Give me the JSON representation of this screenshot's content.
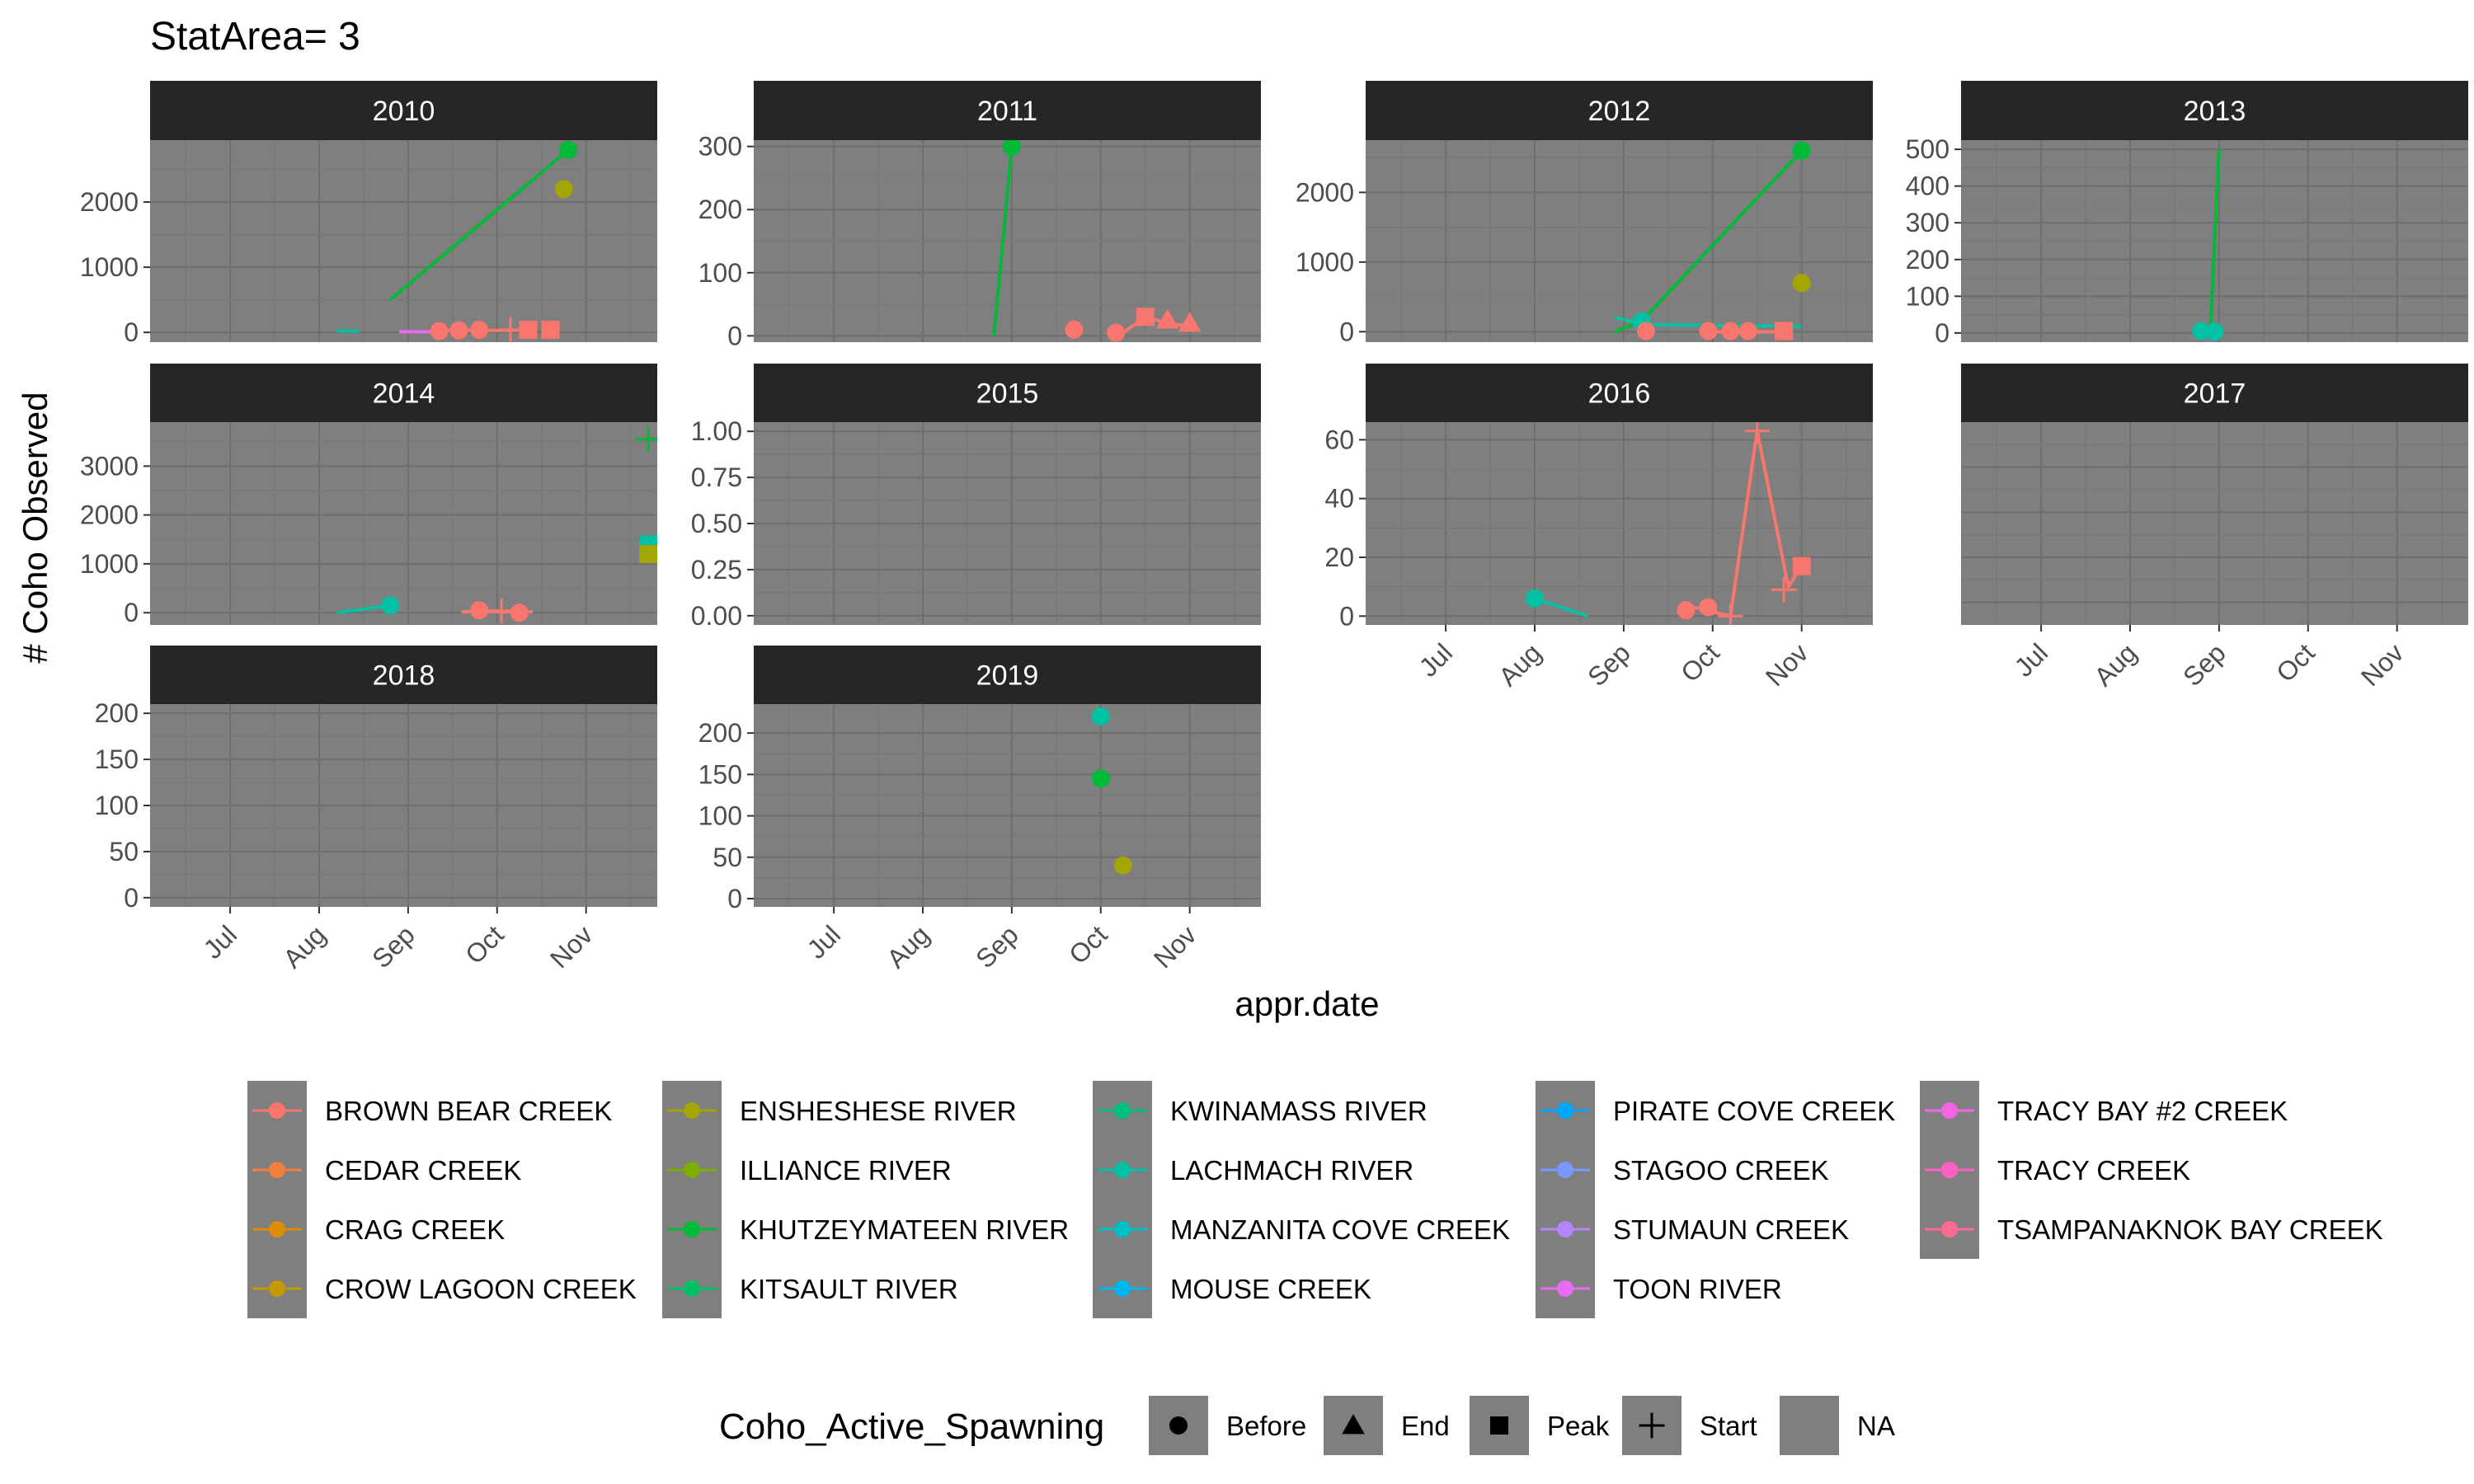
{
  "title": "StatArea= 3",
  "chart_data": {
    "type": "line",
    "facet_by": "year",
    "xlabel": "appr.date",
    "ylabel": "# Coho Observed",
    "x_ticks": [
      "Jul",
      "Aug",
      "Sep",
      "Oct",
      "Nov"
    ],
    "x_tick_pos": [
      0.5,
      1.5,
      2.5,
      3.5,
      4.5
    ],
    "xlim": [
      -0.4,
      5.3
    ],
    "grid": true,
    "legend_position": "bottom",
    "colors": {
      "panel_bg": "#7f7f7f",
      "strip_bg": "#262626",
      "grid_major": "#6e6e6e",
      "grid_minor": "#777777",
      "legend_key_bg": "#7f7f7f"
    },
    "rivers": [
      {
        "name": "BROWN BEAR CREEK",
        "color": "#F8766D"
      },
      {
        "name": "CEDAR CREEK",
        "color": "#EF7F3E"
      },
      {
        "name": "CRAG CREEK",
        "color": "#DE8C00"
      },
      {
        "name": "CROW LAGOON CREEK",
        "color": "#C49A00"
      },
      {
        "name": "ENSHESHESE RIVER",
        "color": "#A3A500"
      },
      {
        "name": "ILLIANCE RIVER",
        "color": "#7CAE00"
      },
      {
        "name": "KHUTZEYMATEEN RIVER",
        "color": "#00BA38"
      },
      {
        "name": "KITSAULT RIVER",
        "color": "#00C066"
      },
      {
        "name": "KWINAMASS RIVER",
        "color": "#00BF7D"
      },
      {
        "name": "LACHMACH RIVER",
        "color": "#00C1A3"
      },
      {
        "name": "MANZANITA COVE CREEK",
        "color": "#00BFC4"
      },
      {
        "name": "MOUSE CREEK",
        "color": "#00B4EF"
      },
      {
        "name": "PIRATE COVE CREEK",
        "color": "#00A5FF"
      },
      {
        "name": "STAGOO CREEK",
        "color": "#7997FF"
      },
      {
        "name": "STUMAUN CREEK",
        "color": "#B385FF"
      },
      {
        "name": "TOON RIVER",
        "color": "#E76BF3"
      },
      {
        "name": "TRACY BAY #2 CREEK",
        "color": "#F564E3"
      },
      {
        "name": "TRACY CREEK",
        "color": "#FF61C3"
      },
      {
        "name": "TSAMPANAKNOK BAY CREEK",
        "color": "#FF6C91"
      }
    ],
    "shape_legend": {
      "title": "Coho_Active_Spawning",
      "items": [
        {
          "label": "Before",
          "shape": "circle"
        },
        {
          "label": "End",
          "shape": "triangle"
        },
        {
          "label": "Peak",
          "shape": "square"
        },
        {
          "label": "Start",
          "shape": "plus"
        },
        {
          "label": "NA",
          "shape": "none"
        }
      ]
    },
    "panels": [
      {
        "year": "2010",
        "yticks": [
          0,
          1000,
          2000
        ],
        "ylim": [
          -150,
          2950
        ],
        "lines": [
          {
            "river": "KHUTZEYMATEEN RIVER",
            "x": [
              2.3,
              4.3
            ],
            "y": [
              500,
              2800
            ]
          },
          {
            "river": "LACHMACH RIVER",
            "x": [
              1.7,
              1.95
            ],
            "y": [
              20,
              20
            ]
          },
          {
            "river": "BROWN BEAR CREEK",
            "x": [
              2.85,
              3.9
            ],
            "y": [
              30,
              30
            ]
          },
          {
            "river": "TOON RIVER",
            "x": [
              2.4,
              2.85
            ],
            "y": [
              10,
              10
            ]
          }
        ],
        "points": [
          {
            "river": "KHUTZEYMATEEN RIVER",
            "x": 4.3,
            "y": 2800,
            "shape": "circle"
          },
          {
            "river": "ENSHESHESE RIVER",
            "x": 4.25,
            "y": 2200,
            "shape": "circle"
          },
          {
            "river": "BROWN BEAR CREEK",
            "x": 2.85,
            "y": 20,
            "shape": "circle"
          },
          {
            "river": "BROWN BEAR CREEK",
            "x": 3.07,
            "y": 30,
            "shape": "circle"
          },
          {
            "river": "BROWN BEAR CREEK",
            "x": 3.3,
            "y": 40,
            "shape": "circle"
          },
          {
            "river": "BROWN BEAR CREEK",
            "x": 3.65,
            "y": 40,
            "shape": "plus"
          },
          {
            "river": "BROWN BEAR CREEK",
            "x": 3.85,
            "y": 40,
            "shape": "square"
          },
          {
            "river": "BROWN BEAR CREEK",
            "x": 4.1,
            "y": 40,
            "shape": "square"
          }
        ]
      },
      {
        "year": "2011",
        "yticks": [
          0,
          100,
          200,
          300
        ],
        "ylim": [
          -10,
          310
        ],
        "lines": [
          {
            "river": "KHUTZEYMATEEN RIVER",
            "x": [
              2.3,
              2.5
            ],
            "y": [
              0,
              300
            ]
          },
          {
            "river": "BROWN BEAR CREEK",
            "x": [
              3.7,
              4.0,
              4.25,
              4.5
            ],
            "y": [
              0,
              30,
              20,
              15
            ]
          }
        ],
        "points": [
          {
            "river": "KHUTZEYMATEEN RIVER",
            "x": 2.5,
            "y": 300,
            "shape": "circle"
          },
          {
            "river": "BROWN BEAR CREEK",
            "x": 3.2,
            "y": 10,
            "shape": "circle"
          },
          {
            "river": "BROWN BEAR CREEK",
            "x": 3.67,
            "y": 5,
            "shape": "circle"
          },
          {
            "river": "BROWN BEAR CREEK",
            "x": 4.0,
            "y": 30,
            "shape": "square"
          },
          {
            "river": "BROWN BEAR CREEK",
            "x": 4.25,
            "y": 25,
            "shape": "triangle"
          },
          {
            "river": "BROWN BEAR CREEK",
            "x": 4.5,
            "y": 20,
            "shape": "triangle"
          }
        ]
      },
      {
        "year": "2012",
        "yticks": [
          0,
          1000,
          2000
        ],
        "ylim": [
          -150,
          2750
        ],
        "lines": [
          {
            "river": "KHUTZEYMATEEN RIVER",
            "x": [
              2.4,
              2.7,
              4.5
            ],
            "y": [
              0,
              150,
              2600
            ]
          },
          {
            "river": "LACHMACH RIVER",
            "x": [
              2.4,
              2.8,
              4.5
            ],
            "y": [
              200,
              100,
              80
            ]
          },
          {
            "river": "BROWN BEAR CREEK",
            "x": [
              3.4,
              4.3
            ],
            "y": [
              0,
              0
            ]
          }
        ],
        "points": [
          {
            "river": "KHUTZEYMATEEN RIVER",
            "x": 4.5,
            "y": 2600,
            "shape": "circle"
          },
          {
            "river": "ENSHESHESE RIVER",
            "x": 4.5,
            "y": 700,
            "shape": "circle"
          },
          {
            "river": "LACHMACH RIVER",
            "x": 2.7,
            "y": 150,
            "shape": "circle"
          },
          {
            "river": "BROWN BEAR CREEK",
            "x": 2.75,
            "y": 10,
            "shape": "circle"
          },
          {
            "river": "BROWN BEAR CREEK",
            "x": 3.45,
            "y": 10,
            "shape": "circle"
          },
          {
            "river": "BROWN BEAR CREEK",
            "x": 3.7,
            "y": 10,
            "shape": "circle"
          },
          {
            "river": "BROWN BEAR CREEK",
            "x": 3.9,
            "y": 10,
            "shape": "circle"
          },
          {
            "river": "BROWN BEAR CREEK",
            "x": 4.3,
            "y": 10,
            "shape": "square"
          }
        ]
      },
      {
        "year": "2013",
        "yticks": [
          0,
          100,
          200,
          300,
          400,
          500
        ],
        "ylim": [
          -25,
          525
        ],
        "lines": [
          {
            "river": "KHUTZEYMATEEN RIVER",
            "x": [
              2.4,
              2.5
            ],
            "y": [
              0,
              500
            ]
          },
          {
            "river": "LACHMACH RIVER",
            "x": [
              2.3,
              2.5
            ],
            "y": [
              5,
              5
            ]
          }
        ],
        "points": [
          {
            "river": "LACHMACH RIVER",
            "x": 2.3,
            "y": 5,
            "shape": "circle"
          },
          {
            "river": "LACHMACH RIVER",
            "x": 2.45,
            "y": 3,
            "shape": "circle"
          }
        ]
      },
      {
        "year": "2014",
        "yticks": [
          0,
          1000,
          2000,
          3000
        ],
        "ylim": [
          -250,
          3900
        ],
        "lines": [
          {
            "river": "LACHMACH RIVER",
            "x": [
              1.7,
              2.3
            ],
            "y": [
              0,
              150
            ]
          },
          {
            "river": "BROWN BEAR CREEK",
            "x": [
              3.1,
              3.9
            ],
            "y": [
              20,
              20
            ]
          }
        ],
        "points": [
          {
            "river": "KHUTZEYMATEEN RIVER",
            "x": 5.2,
            "y": 3550,
            "shape": "plus"
          },
          {
            "river": "LACHMACH RIVER",
            "x": 5.2,
            "y": 1400,
            "shape": "square"
          },
          {
            "river": "ENSHESHESE RIVER",
            "x": 5.2,
            "y": 1200,
            "shape": "square"
          },
          {
            "river": "LACHMACH RIVER",
            "x": 2.3,
            "y": 150,
            "shape": "circle"
          },
          {
            "river": "BROWN BEAR CREEK",
            "x": 3.3,
            "y": 50,
            "shape": "circle"
          },
          {
            "river": "BROWN BEAR CREEK",
            "x": 3.55,
            "y": 40,
            "shape": "plus"
          },
          {
            "river": "BROWN BEAR CREEK",
            "x": 3.75,
            "y": 0,
            "shape": "circle"
          }
        ]
      },
      {
        "year": "2015",
        "yticks": [
          0.0,
          0.25,
          0.5,
          0.75,
          1.0
        ],
        "ytick_labels": [
          "0.00",
          "0.25",
          "0.50",
          "0.75",
          "1.00"
        ],
        "ylim": [
          -0.05,
          1.05
        ],
        "lines": [],
        "points": []
      },
      {
        "year": "2016",
        "yticks": [
          0,
          20,
          40,
          60
        ],
        "ylim": [
          -3,
          66
        ],
        "lines": [
          {
            "river": "LACHMACH RIVER",
            "x": [
              1.5,
              2.1
            ],
            "y": [
              6,
              0
            ]
          },
          {
            "river": "BROWN BEAR CREEK",
            "x": [
              3.3,
              3.7,
              4.0,
              4.35,
              4.5
            ],
            "y": [
              3,
              0,
              63,
              10,
              17
            ]
          }
        ],
        "points": [
          {
            "river": "LACHMACH RIVER",
            "x": 1.5,
            "y": 6,
            "shape": "circle"
          },
          {
            "river": "BROWN BEAR CREEK",
            "x": 3.2,
            "y": 2,
            "shape": "circle"
          },
          {
            "river": "BROWN BEAR CREEK",
            "x": 3.45,
            "y": 3,
            "shape": "circle"
          },
          {
            "river": "BROWN BEAR CREEK",
            "x": 3.7,
            "y": 0,
            "shape": "plus"
          },
          {
            "river": "BROWN BEAR CREEK",
            "x": 4.0,
            "y": 63,
            "shape": "plus"
          },
          {
            "river": "BROWN BEAR CREEK",
            "x": 4.3,
            "y": 9,
            "shape": "plus"
          },
          {
            "river": "BROWN BEAR CREEK",
            "x": 4.5,
            "y": 17,
            "shape": "square"
          }
        ]
      },
      {
        "year": "2017",
        "yticks": [],
        "ylim": [
          0,
          1
        ],
        "lines": [],
        "points": []
      },
      {
        "year": "2018",
        "yticks": [
          0,
          50,
          100,
          150,
          200
        ],
        "ylim": [
          -10,
          210
        ],
        "lines": [],
        "points": []
      },
      {
        "year": "2019",
        "yticks": [
          0,
          50,
          100,
          150,
          200
        ],
        "ylim": [
          -10,
          235
        ],
        "lines": [],
        "points": [
          {
            "river": "LACHMACH RIVER",
            "x": 3.5,
            "y": 220,
            "shape": "circle"
          },
          {
            "river": "KHUTZEYMATEEN RIVER",
            "x": 3.5,
            "y": 145,
            "shape": "circle"
          },
          {
            "river": "ENSHESHESE RIVER",
            "x": 3.75,
            "y": 40,
            "shape": "circle"
          }
        ]
      }
    ]
  }
}
